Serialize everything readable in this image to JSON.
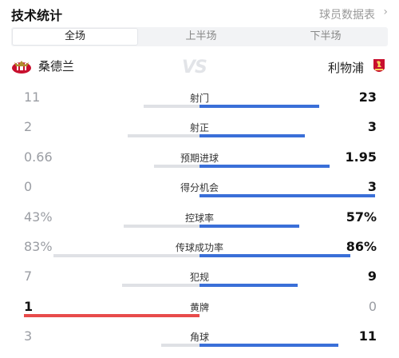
{
  "header": {
    "title": "技术统计",
    "link": "球员数据表"
  },
  "tabs": [
    {
      "label": "全场",
      "active": true
    },
    {
      "label": "上半场",
      "active": false
    },
    {
      "label": "下半场",
      "active": false
    }
  ],
  "teams": {
    "home": "桑德兰",
    "away": "利物浦",
    "vs": "VS"
  },
  "colors": {
    "away_bar": "#3a6fd8",
    "home_win_bar": "#e84b4b",
    "neutral_bar": "#dfe1e5"
  },
  "stats": [
    {
      "label": "射门",
      "home": "11",
      "away": "23",
      "home_share": 0.32,
      "away_share": 0.68,
      "winner": "away"
    },
    {
      "label": "射正",
      "home": "2",
      "away": "3",
      "home_share": 0.41,
      "away_share": 0.6,
      "winner": "away"
    },
    {
      "label": "预期进球",
      "home": "0.66",
      "away": "1.95",
      "home_share": 0.26,
      "away_share": 0.74,
      "winner": "away"
    },
    {
      "label": "得分机会",
      "home": "0",
      "away": "3",
      "home_share": 0.0,
      "away_share": 1.0,
      "winner": "away"
    },
    {
      "label": "控球率",
      "home": "43%",
      "away": "57%",
      "home_share": 0.43,
      "away_share": 0.57,
      "winner": "away"
    },
    {
      "label": "传球成功率",
      "home": "83%",
      "away": "86%",
      "home_share": 0.83,
      "away_share": 0.86,
      "winner": "away"
    },
    {
      "label": "犯规",
      "home": "7",
      "away": "9",
      "home_share": 0.44,
      "away_share": 0.56,
      "winner": "away"
    },
    {
      "label": "黄牌",
      "home": "1",
      "away": "0",
      "home_share": 1.0,
      "away_share": 0.0,
      "winner": "home"
    },
    {
      "label": "角球",
      "home": "3",
      "away": "11",
      "home_share": 0.22,
      "away_share": 0.79,
      "winner": "away"
    }
  ]
}
